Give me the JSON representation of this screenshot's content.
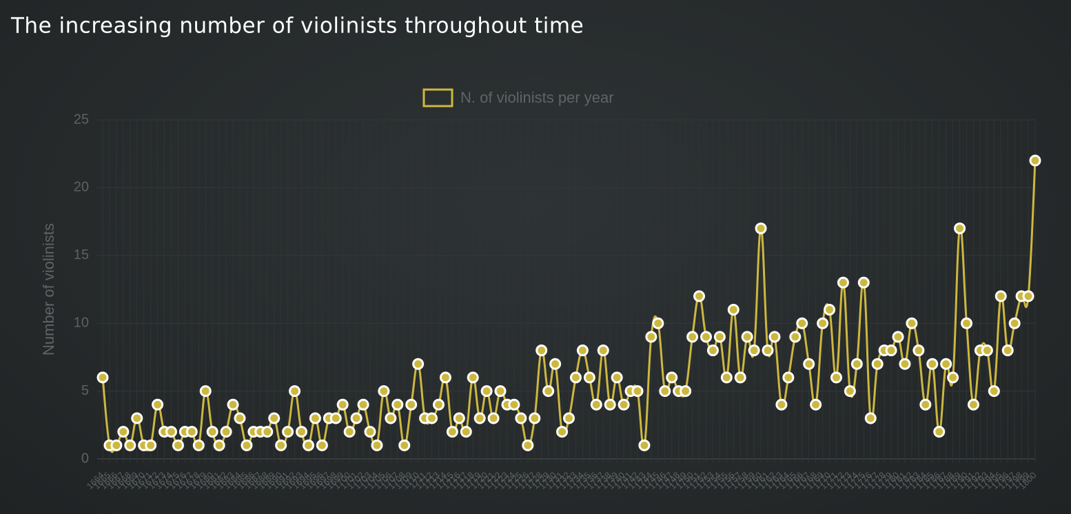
{
  "chart_data": {
    "type": "line",
    "title": "The increasing number of violinists throughout time",
    "y_label": "Number of violinists",
    "categories": [
      1664,
      1665,
      1666,
      1667,
      1668,
      1669,
      1670,
      1671,
      1672,
      1673,
      1674,
      1675,
      1676,
      1677,
      1678,
      1679,
      1680,
      1681,
      1682,
      1683,
      1684,
      1685,
      1686,
      1687,
      1688,
      1689,
      1690,
      1691,
      1692,
      1693,
      1694,
      1695,
      1696,
      1697,
      1698,
      1699,
      1700,
      1701,
      1702,
      1703,
      1704,
      1705,
      1706,
      1707,
      1708,
      1709,
      1710,
      1711,
      1712,
      1713,
      1714,
      1715,
      1716,
      1717,
      1718,
      1719,
      1720,
      1721,
      1722,
      1723,
      1724,
      1725,
      1726,
      1727,
      1728,
      1729,
      1730,
      1731,
      1732,
      1733,
      1734,
      1735,
      1736,
      1737,
      1738,
      1739,
      1740,
      1741,
      1742,
      1743,
      1744,
      1745,
      1746,
      1747,
      1748,
      1749,
      1750,
      1751,
      1752,
      1753,
      1754,
      1755,
      1756,
      1757,
      1758,
      1759,
      1760,
      1761,
      1762,
      1763,
      1764,
      1765,
      1766,
      1767,
      1768,
      1769,
      1770,
      1771,
      1772,
      1773,
      1774,
      1775,
      1776,
      1777,
      1778,
      1779,
      1780,
      1781,
      1782,
      1783,
      1784,
      1785,
      1786,
      1787,
      1788,
      1789,
      1790,
      1791,
      1792,
      1793,
      1794,
      1795,
      1796,
      1797,
      1798,
      1799,
      1800
    ],
    "series": [
      {
        "name": "N. of violinists per year",
        "color": "#cdb83f",
        "values": [
          6,
          1,
          1,
          2,
          1,
          3,
          1,
          1,
          4,
          2,
          2,
          1,
          2,
          2,
          1,
          5,
          2,
          1,
          2,
          4,
          3,
          1,
          2,
          2,
          2,
          3,
          1,
          2,
          5,
          2,
          1,
          3,
          1,
          3,
          3,
          4,
          2,
          3,
          4,
          2,
          1,
          5,
          3,
          4,
          1,
          4,
          7,
          3,
          3,
          4,
          6,
          2,
          3,
          2,
          6,
          3,
          5,
          3,
          5,
          4,
          4,
          3,
          1,
          3,
          8,
          5,
          7,
          2,
          3,
          6,
          8,
          6,
          4,
          8,
          4,
          6,
          4,
          5,
          5,
          1,
          9,
          10,
          5,
          6,
          5,
          5,
          9,
          12,
          9,
          8,
          9,
          6,
          11,
          6,
          9,
          8,
          17,
          8,
          9,
          4,
          6,
          9,
          10,
          7,
          4,
          10,
          11,
          6,
          13,
          5,
          7,
          13,
          3,
          7,
          8,
          8,
          9,
          7,
          10,
          8,
          4,
          7,
          2,
          7,
          6,
          17,
          10,
          4,
          8,
          8,
          5,
          12,
          8,
          10,
          12,
          12,
          22
        ]
      }
    ],
    "ylim": [
      0,
      25
    ],
    "yticks": [
      0,
      5,
      10,
      15,
      20,
      25
    ],
    "grid": true,
    "legend": "top"
  }
}
